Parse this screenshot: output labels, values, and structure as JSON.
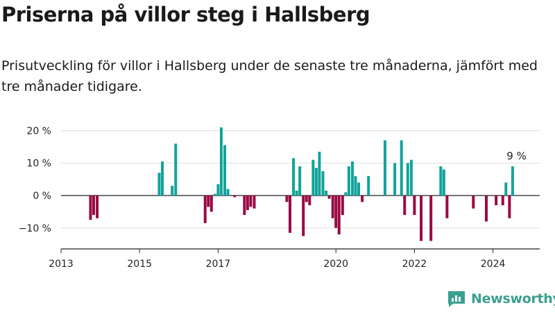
{
  "header": {
    "title": "Priserna på villor steg i Hallsberg",
    "subtitle": "Prisutveckling för villor i Hallsberg under de senaste tre månaderna, jämfört med tre månader tidigare."
  },
  "brand": {
    "name": "Newsworthy",
    "icon": "newsworthy-logo-icon",
    "color": "#3aa08e"
  },
  "chart_data": {
    "type": "bar",
    "title": "Priserna på villor steg i Hallsberg",
    "xlabel": "",
    "ylabel": "",
    "ylim": [
      -15.5,
      22
    ],
    "yticks": [
      -10,
      0,
      10,
      20
    ],
    "ytick_labels": [
      "−10 %",
      "0 %",
      "10 %",
      "20 %"
    ],
    "xlim": [
      2013.0,
      2025.8
    ],
    "xticks": [
      2013,
      2015,
      2017,
      2020,
      2022,
      2024
    ],
    "xtick_labels": [
      "2013",
      "2015",
      "2017",
      "2020",
      "2022",
      "2024"
    ],
    "grid": "horizontal",
    "colors": {
      "positive": "#12a39a",
      "negative": "#9a0a43"
    },
    "annotations": [
      {
        "text": "9 %",
        "x": 2024.6,
        "y": 9
      }
    ],
    "series": [
      {
        "x": [
          2013.75,
          2013.83,
          2013.92,
          2015.5,
          2015.58,
          2015.83,
          2015.92,
          2016.67,
          2016.75,
          2016.83,
          2016.92,
          2017.0,
          2017.08,
          2017.17,
          2017.25,
          2017.42,
          2017.67,
          2017.75,
          2017.83,
          2017.92,
          2018.75,
          2018.83,
          2018.92,
          2019.0,
          2019.08,
          2019.17,
          2019.25,
          2019.33,
          2019.42,
          2019.5,
          2019.58,
          2019.67,
          2019.75,
          2019.83,
          2019.92,
          2020.0,
          2020.08,
          2020.17,
          2020.25,
          2020.33,
          2020.42,
          2020.5,
          2020.58,
          2020.67,
          2020.83,
          2021.25,
          2021.5,
          2021.67,
          2021.75,
          2021.83,
          2021.92,
          2022.0,
          2022.17,
          2022.42,
          2022.67,
          2022.75,
          2022.83,
          2023.5,
          2023.83,
          2024.08,
          2024.25,
          2024.33,
          2024.42,
          2024.5
        ],
        "values": [
          -7.5,
          -6,
          -7,
          7,
          10.5,
          3,
          16,
          -8.5,
          -3.5,
          -5,
          0.5,
          3.5,
          21,
          15.5,
          2,
          -0.5,
          -6,
          -4.5,
          -3.5,
          -4,
          -2,
          -11.5,
          11.5,
          1.5,
          9,
          -12.5,
          -2,
          -3,
          11,
          8.5,
          13.5,
          7.5,
          1.5,
          -1,
          -7,
          -10,
          -12,
          -6,
          1,
          9,
          10.5,
          6,
          4,
          -2,
          6,
          17,
          10,
          17,
          -6,
          10,
          11,
          -6,
          -14,
          -14,
          9,
          8,
          -7,
          -4,
          -8,
          -3,
          -3,
          4,
          -7,
          9
        ]
      }
    ]
  }
}
